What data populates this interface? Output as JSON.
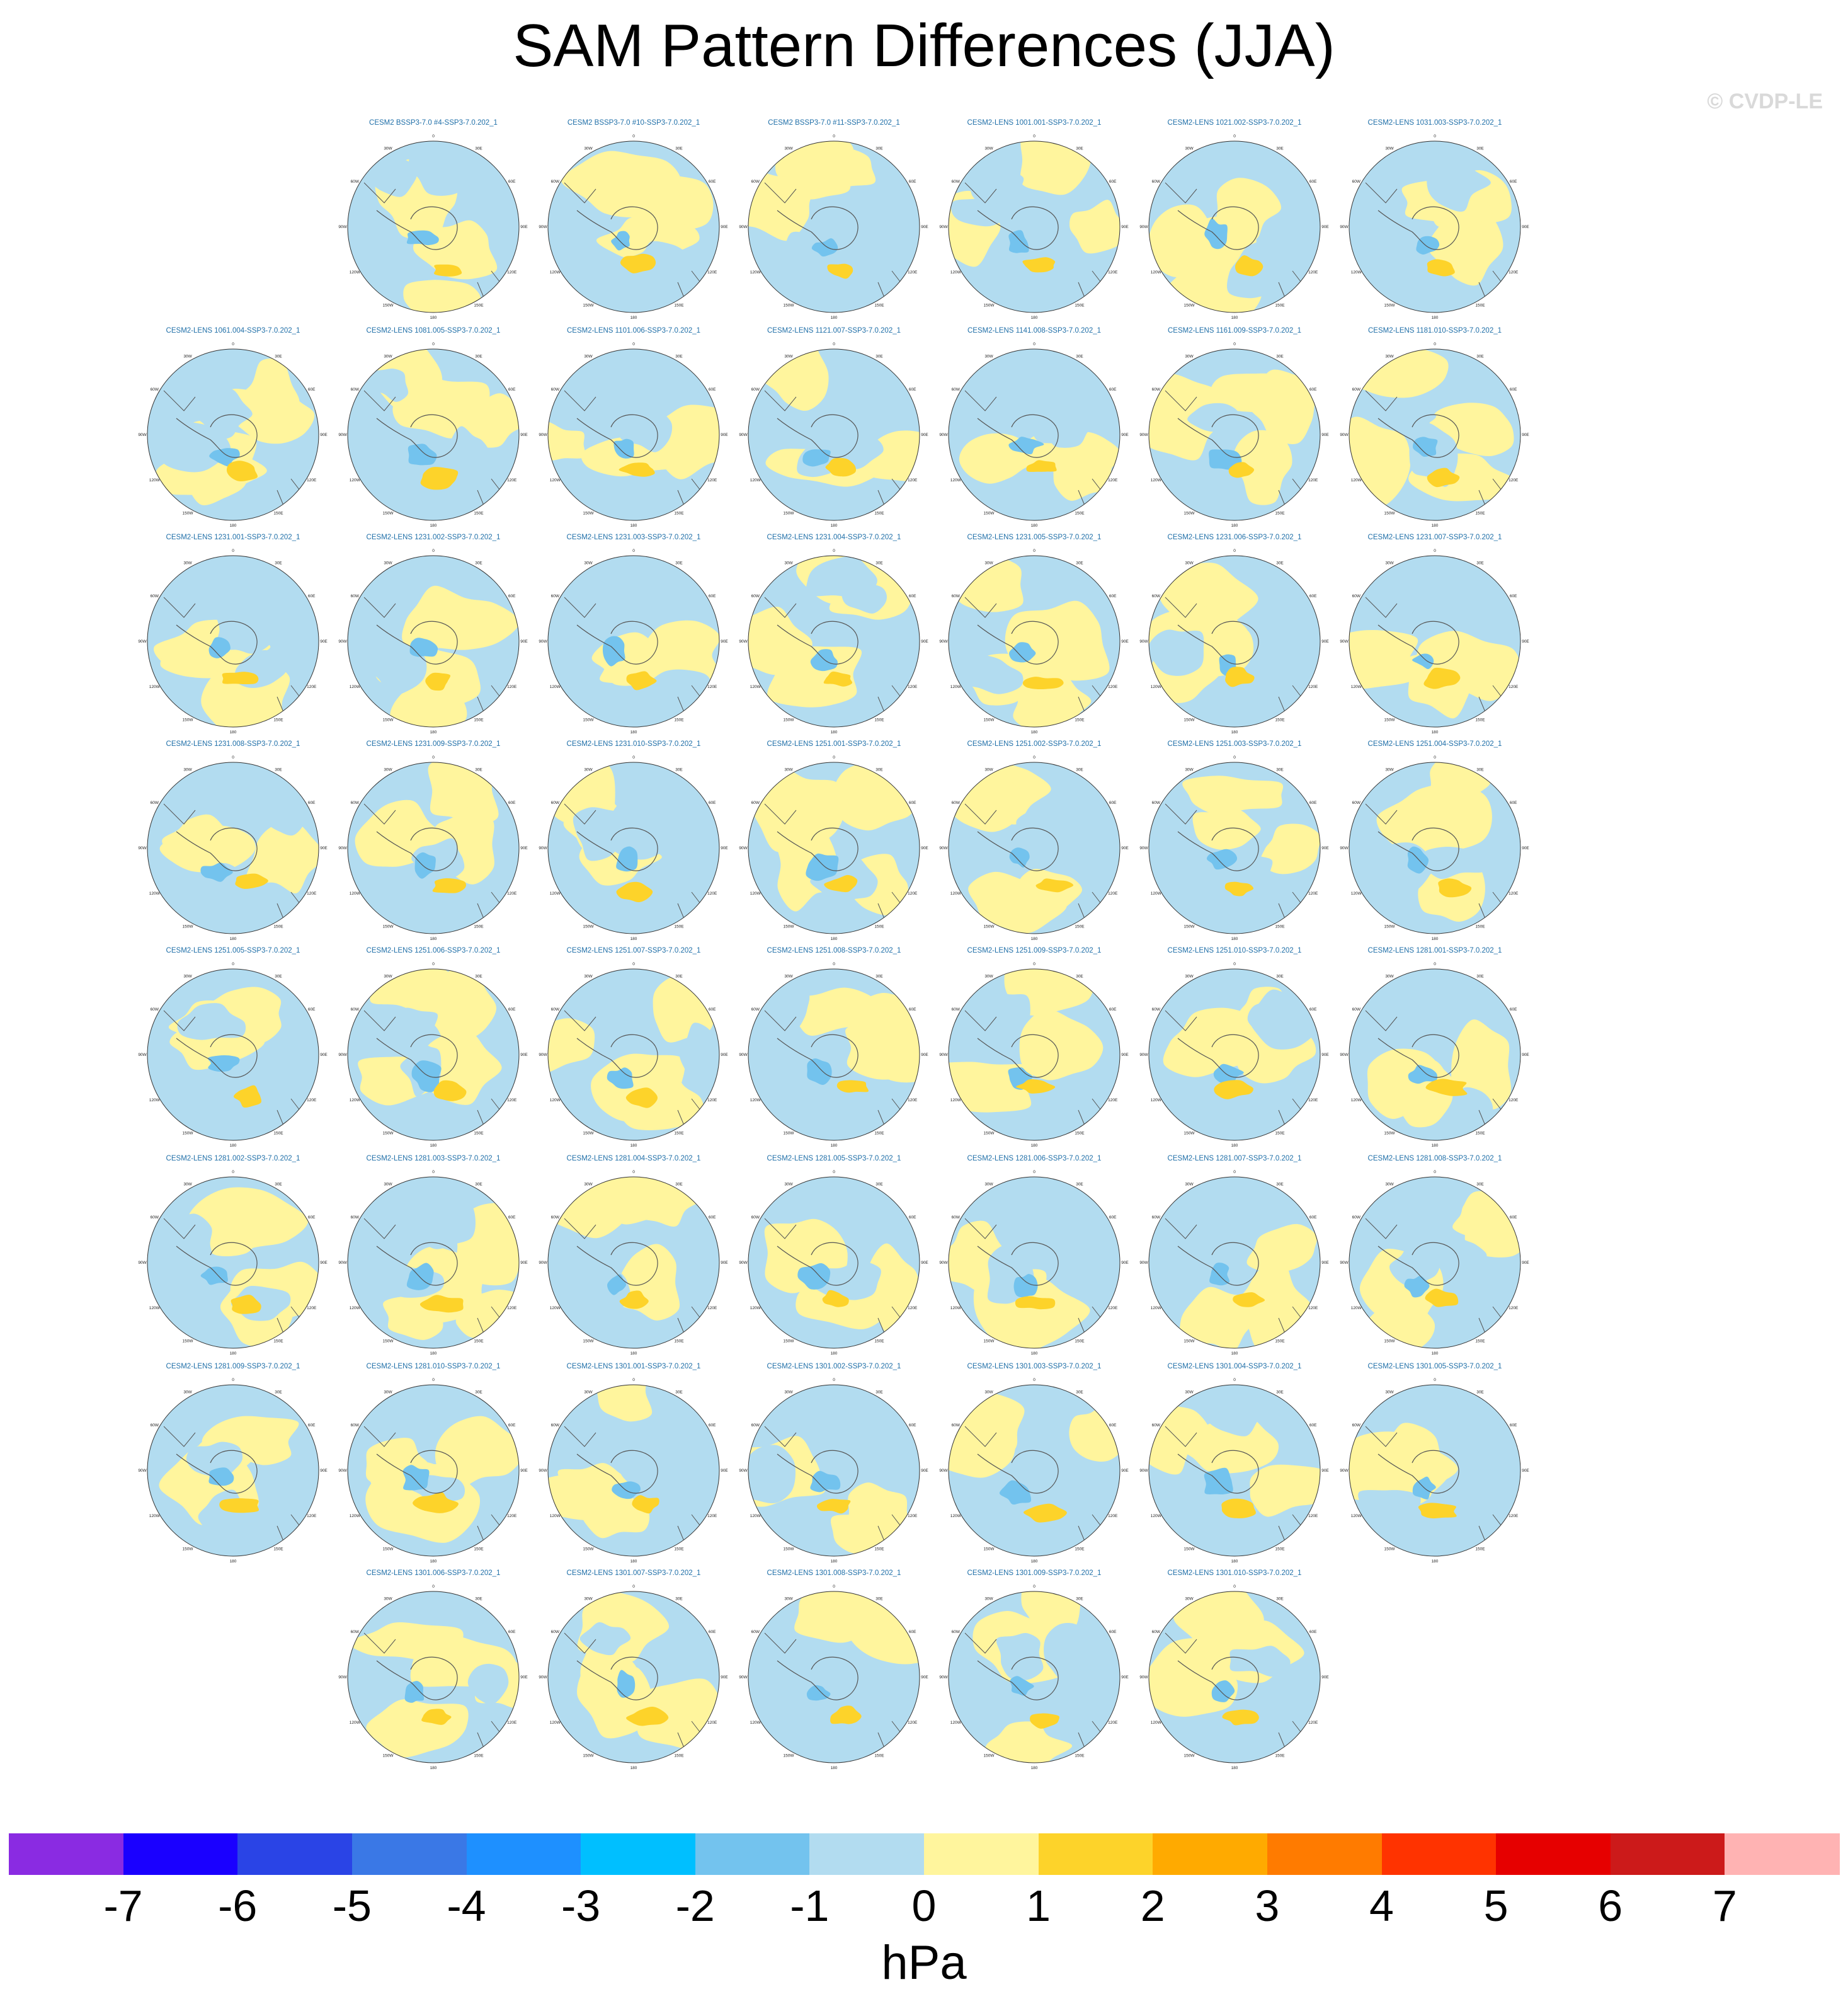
{
  "title": "SAM Pattern Differences (JJA)",
  "watermark": "© CVDP-LE",
  "map": {
    "type": "polar-stereographic-south",
    "variable": "SAM pattern difference",
    "lon_labels": [
      "0",
      "30E",
      "60E",
      "90E",
      "120E",
      "150E",
      "180",
      "150W",
      "120W",
      "90W",
      "60W",
      "30W"
    ],
    "colors": {
      "panel_label": "#1f6fa8",
      "coast": "#555555",
      "grid": "#aaaaaa",
      "negative_1": "#b2dcf0",
      "positive_1": "#fff59d",
      "positive_2": "#fdd32a"
    }
  },
  "panels": [
    {
      "label": "CESM2 BSSP3-7.0 #4-SSP3-7.0.202_1",
      "pattern": 0
    },
    {
      "label": "CESM2 BSSP3-7.0 #10-SSP3-7.0.202_1",
      "pattern": 1
    },
    {
      "label": "CESM2 BSSP3-7.0 #11-SSP3-7.0.202_1",
      "pattern": 2
    },
    {
      "label": "CESM2-LENS 1001.001-SSP3-7.0.202_1",
      "pattern": 3
    },
    {
      "label": "CESM2-LENS 1021.002-SSP3-7.0.202_1",
      "pattern": 4
    },
    {
      "label": "CESM2-LENS 1031.003-SSP3-7.0.202_1",
      "pattern": 5
    },
    {
      "label": "CESM2-LENS 1061.004-SSP3-7.0.202_1",
      "pattern": 6
    },
    {
      "label": "CESM2-LENS 1081.005-SSP3-7.0.202_1",
      "pattern": 7
    },
    {
      "label": "CESM2-LENS 1101.006-SSP3-7.0.202_1",
      "pattern": 8
    },
    {
      "label": "CESM2-LENS 1121.007-SSP3-7.0.202_1",
      "pattern": 9
    },
    {
      "label": "CESM2-LENS 1141.008-SSP3-7.0.202_1",
      "pattern": 10
    },
    {
      "label": "CESM2-LENS 1161.009-SSP3-7.0.202_1",
      "pattern": 11
    },
    {
      "label": "CESM2-LENS 1181.010-SSP3-7.0.202_1",
      "pattern": 12
    },
    {
      "label": "CESM2-LENS 1231.001-SSP3-7.0.202_1",
      "pattern": 13
    },
    {
      "label": "CESM2-LENS 1231.002-SSP3-7.0.202_1",
      "pattern": 14
    },
    {
      "label": "CESM2-LENS 1231.003-SSP3-7.0.202_1",
      "pattern": 15
    },
    {
      "label": "CESM2-LENS 1231.004-SSP3-7.0.202_1",
      "pattern": 16
    },
    {
      "label": "CESM2-LENS 1231.005-SSP3-7.0.202_1",
      "pattern": 17
    },
    {
      "label": "CESM2-LENS 1231.006-SSP3-7.0.202_1",
      "pattern": 18
    },
    {
      "label": "CESM2-LENS 1231.007-SSP3-7.0.202_1",
      "pattern": 19
    },
    {
      "label": "CESM2-LENS 1231.008-SSP3-7.0.202_1",
      "pattern": 20
    },
    {
      "label": "CESM2-LENS 1231.009-SSP3-7.0.202_1",
      "pattern": 21
    },
    {
      "label": "CESM2-LENS 1231.010-SSP3-7.0.202_1",
      "pattern": 22
    },
    {
      "label": "CESM2-LENS 1251.001-SSP3-7.0.202_1",
      "pattern": 23
    },
    {
      "label": "CESM2-LENS 1251.002-SSP3-7.0.202_1",
      "pattern": 24
    },
    {
      "label": "CESM2-LENS 1251.003-SSP3-7.0.202_1",
      "pattern": 25
    },
    {
      "label": "CESM2-LENS 1251.004-SSP3-7.0.202_1",
      "pattern": 26
    },
    {
      "label": "CESM2-LENS 1251.005-SSP3-7.0.202_1",
      "pattern": 27
    },
    {
      "label": "CESM2-LENS 1251.006-SSP3-7.0.202_1",
      "pattern": 28
    },
    {
      "label": "CESM2-LENS 1251.007-SSP3-7.0.202_1",
      "pattern": 29
    },
    {
      "label": "CESM2-LENS 1251.008-SSP3-7.0.202_1",
      "pattern": 30
    },
    {
      "label": "CESM2-LENS 1251.009-SSP3-7.0.202_1",
      "pattern": 31
    },
    {
      "label": "CESM2-LENS 1251.010-SSP3-7.0.202_1",
      "pattern": 32
    },
    {
      "label": "CESM2-LENS 1281.001-SSP3-7.0.202_1",
      "pattern": 33
    },
    {
      "label": "CESM2-LENS 1281.002-SSP3-7.0.202_1",
      "pattern": 34
    },
    {
      "label": "CESM2-LENS 1281.003-SSP3-7.0.202_1",
      "pattern": 35
    },
    {
      "label": "CESM2-LENS 1281.004-SSP3-7.0.202_1",
      "pattern": 36
    },
    {
      "label": "CESM2-LENS 1281.005-SSP3-7.0.202_1",
      "pattern": 37
    },
    {
      "label": "CESM2-LENS 1281.006-SSP3-7.0.202_1",
      "pattern": 38
    },
    {
      "label": "CESM2-LENS 1281.007-SSP3-7.0.202_1",
      "pattern": 39
    },
    {
      "label": "CESM2-LENS 1281.008-SSP3-7.0.202_1",
      "pattern": 40
    },
    {
      "label": "CESM2-LENS 1281.009-SSP3-7.0.202_1",
      "pattern": 41
    },
    {
      "label": "CESM2-LENS 1281.010-SSP3-7.0.202_1",
      "pattern": 42
    },
    {
      "label": "CESM2-LENS 1301.001-SSP3-7.0.202_1",
      "pattern": 43
    },
    {
      "label": "CESM2-LENS 1301.002-SSP3-7.0.202_1",
      "pattern": 44
    },
    {
      "label": "CESM2-LENS 1301.003-SSP3-7.0.202_1",
      "pattern": 45
    },
    {
      "label": "CESM2-LENS 1301.004-SSP3-7.0.202_1",
      "pattern": 46
    },
    {
      "label": "CESM2-LENS 1301.005-SSP3-7.0.202_1",
      "pattern": 47
    },
    {
      "label": "CESM2-LENS 1301.006-SSP3-7.0.202_1",
      "pattern": 48
    },
    {
      "label": "CESM2-LENS 1301.007-SSP3-7.0.202_1",
      "pattern": 49
    },
    {
      "label": "CESM2-LENS 1301.008-SSP3-7.0.202_1",
      "pattern": 50
    },
    {
      "label": "CESM2-LENS 1301.009-SSP3-7.0.202_1",
      "pattern": 51
    },
    {
      "label": "CESM2-LENS 1301.010-SSP3-7.0.202_1",
      "pattern": 52
    }
  ],
  "colorbar": {
    "units": "hPa",
    "ticks": [
      "-7",
      "-6",
      "-5",
      "-4",
      "-3",
      "-2",
      "-1",
      "0",
      "1",
      "2",
      "3",
      "4",
      "5",
      "6",
      "7"
    ],
    "colors": [
      "#8a2be2",
      "#1a00ff",
      "#2a44e6",
      "#3a78e6",
      "#1e90ff",
      "#00bfff",
      "#73c3ee",
      "#b2dcf0",
      "#fff59d",
      "#fdd32a",
      "#ffaa00",
      "#ff7b00",
      "#ff3300",
      "#e60000",
      "#cc1a1a",
      "#ffb3b3"
    ]
  }
}
